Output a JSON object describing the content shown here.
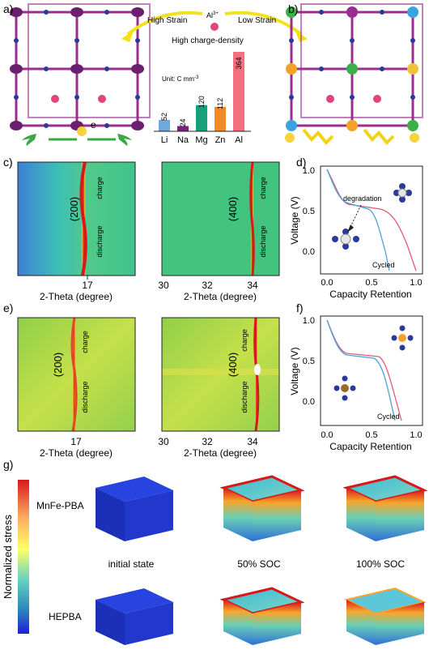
{
  "panels": {
    "a": "a)",
    "b": "b)",
    "c": "c)",
    "d": "d)",
    "e": "e)",
    "f": "f)",
    "g": "g)"
  },
  "top": {
    "high_strain": "High Strain",
    "ion": "Al",
    "ion_sup": "3+",
    "low_strain": "Low Strain",
    "charge_density_title": "High charge-density",
    "unit_label": "Unit: C mm",
    "unit_sup": "-3",
    "electron": "e",
    "chart_data": {
      "type": "bar",
      "categories": [
        "Li",
        "Na",
        "Mg",
        "Zn",
        "Al"
      ],
      "values": [
        52,
        24,
        120,
        112,
        364
      ],
      "colors": [
        "#6fa8dc",
        "#7b1f7a",
        "#1a9f7b",
        "#f08a24",
        "#f46f7f"
      ],
      "title": "High charge-density",
      "ylim": [
        0,
        364
      ]
    }
  },
  "xrd": {
    "xlabel": "2-Theta (degree)",
    "c_left_peak": "(200)",
    "c_right_peak": "(400)",
    "e_left_peak": "(200)",
    "e_right_peak": "(400)",
    "charge": "charge",
    "discharge": "discharge",
    "left_ticks": [
      "17"
    ],
    "right_ticks": [
      "30",
      "32",
      "34"
    ]
  },
  "voltage": {
    "ylabel": "Voltage (V)",
    "xlabel": "Capacity Retention",
    "yticks": [
      "1.0",
      "0.5",
      "0.0"
    ],
    "xticks": [
      "0.0",
      "0.5",
      "1.0"
    ],
    "degradation": "degradation",
    "cycled": "Cycled"
  },
  "fem": {
    "colorbar_label": "Normalized stress",
    "row1": "MnFe-PBA",
    "row2": "HEPBA",
    "col1": "initial state",
    "col2": "50% SOC",
    "col3": "100% SOC"
  },
  "colors": {
    "hot": "#d7191c",
    "cool": "#2b83ba",
    "cube_blue": "#1f3fd6"
  }
}
